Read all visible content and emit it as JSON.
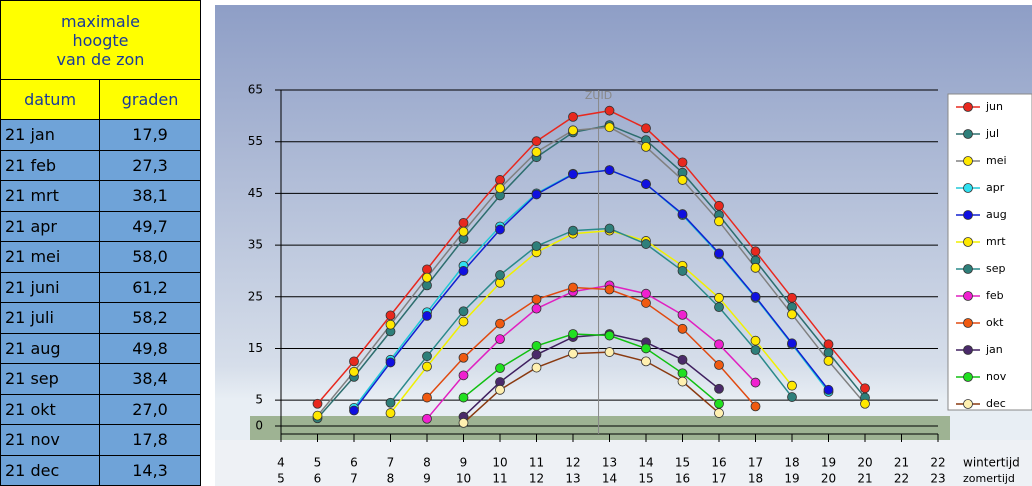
{
  "table": {
    "title": [
      "maximale",
      "hoogte",
      "van de zon"
    ],
    "header": [
      "datum",
      "graden"
    ],
    "rows": [
      [
        "21 jan",
        "17,9"
      ],
      [
        "21 feb",
        "27,3"
      ],
      [
        "21 mrt",
        "38,1"
      ],
      [
        "21 apr",
        "49,7"
      ],
      [
        "21 mei",
        "58,0"
      ],
      [
        "21 juni",
        "61,2"
      ],
      [
        "21 juli",
        "58,2"
      ],
      [
        "21 aug",
        "49,8"
      ],
      [
        "21 sep",
        "38,4"
      ],
      [
        "21 okt",
        "27,0"
      ],
      [
        "21 nov",
        "17,8"
      ],
      [
        "21 dec",
        "14,3"
      ]
    ]
  },
  "chart_data": {
    "type": "line",
    "x": [
      5,
      6,
      7,
      8,
      9,
      10,
      11,
      12,
      13,
      14,
      15,
      16,
      17,
      18,
      19,
      20
    ],
    "series": [
      {
        "name": "jun",
        "color": "#e8281e",
        "marker_color": "#e8281e",
        "values": [
          4.3,
          12.5,
          21.4,
          30.3,
          39.3,
          47.6,
          55.1,
          59.8,
          61.0,
          57.6,
          51.0,
          42.6,
          33.8,
          24.8,
          15.8,
          7.3
        ]
      },
      {
        "name": "jul",
        "color": "#2e6e6e",
        "marker_color": "#2e7f7a",
        "values": [
          1.5,
          9.5,
          18.3,
          27.2,
          36.2,
          44.6,
          52.0,
          56.8,
          58.2,
          55.3,
          49.0,
          40.8,
          32.0,
          23.0,
          14.2,
          5.5
        ]
      },
      {
        "name": "mei",
        "color": "#808080",
        "marker_color": "#ffe800",
        "values": [
          2.0,
          10.5,
          19.6,
          28.7,
          37.6,
          46.0,
          53.0,
          57.2,
          57.8,
          54.0,
          47.6,
          39.6,
          30.6,
          21.6,
          12.6,
          4.3
        ]
      },
      {
        "name": "apr",
        "color": "#20c8d8",
        "marker_color": "#30e0f0",
        "values": [
          null,
          3.5,
          12.8,
          22.0,
          31.0,
          38.6,
          45.0,
          48.8,
          49.5,
          46.8,
          40.8,
          33.2,
          24.8,
          15.8,
          6.6,
          null
        ]
      },
      {
        "name": "aug",
        "color": "#1020d0",
        "marker_color": "#1010e0",
        "values": [
          null,
          3.0,
          12.3,
          21.3,
          30.0,
          38.0,
          44.8,
          48.7,
          49.5,
          46.8,
          41.0,
          33.4,
          25.0,
          16.0,
          7.0,
          null
        ]
      },
      {
        "name": "mrt",
        "color": "#f0f000",
        "marker_color": "#ffe800",
        "values": [
          null,
          null,
          2.5,
          11.5,
          20.2,
          27.7,
          33.6,
          37.2,
          37.8,
          35.8,
          31.0,
          24.8,
          16.5,
          7.8,
          null,
          null
        ]
      },
      {
        "name": "sep",
        "color": "#2a8a8a",
        "marker_color": "#2e7f7a",
        "values": [
          null,
          null,
          4.5,
          13.5,
          22.2,
          29.2,
          34.8,
          37.8,
          38.2,
          35.2,
          30.0,
          23.0,
          14.7,
          5.6,
          null,
          null
        ]
      },
      {
        "name": "feb",
        "color": "#e020c0",
        "marker_color": "#f020d0",
        "values": [
          null,
          null,
          null,
          1.4,
          9.8,
          16.8,
          22.7,
          26.0,
          27.2,
          25.6,
          21.5,
          15.8,
          8.4,
          null,
          null,
          null
        ]
      },
      {
        "name": "okt",
        "color": "#e04a10",
        "marker_color": "#f05a10",
        "values": [
          null,
          null,
          null,
          5.5,
          13.2,
          19.8,
          24.5,
          26.8,
          26.4,
          23.8,
          18.8,
          11.8,
          3.8,
          null,
          null,
          null
        ]
      },
      {
        "name": "jan",
        "color": "#402060",
        "marker_color": "#4a2a6a",
        "values": [
          null,
          null,
          null,
          null,
          1.8,
          8.5,
          13.8,
          17.2,
          17.8,
          16.2,
          12.8,
          7.2,
          null,
          null,
          null,
          null
        ]
      },
      {
        "name": "nov",
        "color": "#10c010",
        "marker_color": "#20e020",
        "values": [
          null,
          null,
          null,
          null,
          5.5,
          11.2,
          15.5,
          17.8,
          17.5,
          15.0,
          10.2,
          4.3,
          null,
          null,
          null,
          null
        ]
      },
      {
        "name": "dec",
        "color": "#8a3a10",
        "marker_color": "#fff0b0",
        "values": [
          null,
          null,
          null,
          null,
          0.6,
          7.0,
          11.3,
          14.0,
          14.3,
          12.5,
          8.6,
          2.5,
          null,
          null,
          null,
          null
        ]
      }
    ],
    "xlim": [
      4,
      22
    ],
    "xticks": [
      4,
      5,
      6,
      7,
      8,
      9,
      10,
      11,
      12,
      13,
      14,
      15,
      16,
      17,
      18,
      19,
      20,
      21,
      22
    ],
    "xticks_zomertijd": [
      5,
      6,
      7,
      8,
      9,
      10,
      11,
      12,
      13,
      14,
      15,
      16,
      17,
      18,
      19,
      20,
      21,
      22,
      23
    ],
    "x_label_wintertijd": "wintertijd",
    "x_label_zomertijd": "zomertijd",
    "ylim": [
      0,
      65
    ],
    "yticks": [
      0,
      5,
      15,
      25,
      35,
      45,
      55,
      65
    ],
    "grid": true,
    "annotation": {
      "text": "ZUID",
      "x": 12.7
    },
    "legend": "right"
  }
}
